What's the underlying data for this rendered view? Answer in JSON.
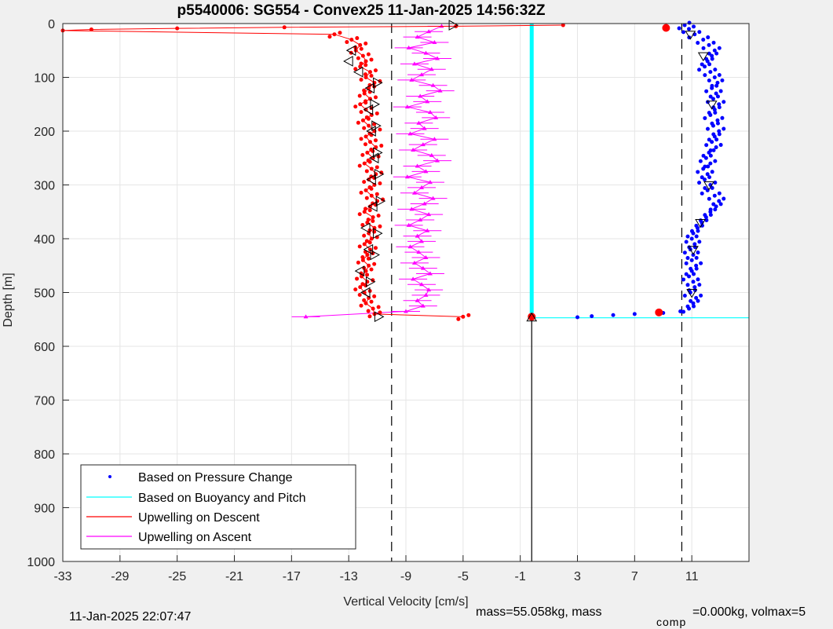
{
  "chart_data": {
    "type": "line",
    "title": "p5540006: SG554 - Convex25 11-Jan-2025 14:56:32Z",
    "xlabel": "Vertical Velocity [cm/s]",
    "ylabel": "Depth [m]",
    "xlim": [
      -33,
      15
    ],
    "ylim": [
      0,
      1000
    ],
    "y_reversed": true,
    "grid": true,
    "x_ticks": [
      -33,
      -29,
      -25,
      -21,
      -17,
      -13,
      -9,
      -5,
      -1,
      3,
      7,
      11
    ],
    "x_tick_labels": [
      "-33",
      "-29",
      "-25",
      "-21",
      "-17",
      "-13",
      "-9",
      "-5",
      "-1",
      "3",
      "7",
      "11"
    ],
    "y_ticks": [
      0,
      100,
      200,
      300,
      400,
      500,
      600,
      700,
      800,
      900,
      1000
    ],
    "y_tick_labels": [
      "0",
      "100",
      "200",
      "300",
      "400",
      "500",
      "600",
      "700",
      "800",
      "900",
      "1000"
    ],
    "legend_position": "bottom-left",
    "legend": [
      {
        "label": "Based on Pressure Change",
        "color": "#0000ff",
        "marker": "dot"
      },
      {
        "label": "Based on Buoyancy and Pitch",
        "color": "#00ffff",
        "marker": "line"
      },
      {
        "label": "Upwelling on Descent",
        "color": "#ff0000",
        "marker": "line"
      },
      {
        "label": "Upwelling on Ascent",
        "color": "#ff00ff",
        "marker": "line"
      }
    ],
    "reference_lines": {
      "dashed_x": [
        -10,
        10.3
      ],
      "solid_x": -0.2,
      "solid_x_depth_range": [
        548,
        1000
      ],
      "cyan_horizontal_depth": 547,
      "cyan_horizontal_x_range": [
        -0.2,
        15
      ]
    },
    "series": {
      "buoyancy_pitch": {
        "x": -0.2,
        "depth_range": [
          0,
          548
        ],
        "color": "#00ffff"
      },
      "pressure_change": {
        "color": "#0000ff",
        "depth": [
          3,
          10,
          20,
          30,
          40,
          50,
          60,
          70,
          80,
          90,
          100,
          110,
          120,
          130,
          140,
          150,
          160,
          170,
          180,
          190,
          200,
          210,
          220,
          230,
          240,
          250,
          260,
          270,
          280,
          290,
          300,
          310,
          320,
          330,
          340,
          350,
          360,
          370,
          380,
          390,
          400,
          410,
          420,
          430,
          440,
          450,
          460,
          470,
          480,
          490,
          500,
          510,
          520,
          530,
          535,
          538,
          540,
          542,
          544,
          546
        ],
        "x": [
          10.5,
          10.8,
          11.2,
          11.8,
          12.2,
          12.6,
          12.4,
          12.1,
          11.9,
          12.3,
          12.6,
          12.8,
          12.4,
          12.7,
          12.5,
          12.9,
          12.6,
          12.3,
          12.8,
          12.5,
          12.9,
          12.6,
          12.4,
          12.7,
          12.2,
          12.0,
          12.3,
          11.8,
          12.1,
          11.9,
          12.3,
          12.1,
          12.6,
          12.9,
          12.7,
          12.3,
          12.0,
          11.7,
          11.4,
          11.1,
          11.0,
          11.2,
          10.9,
          11.1,
          11.0,
          11.3,
          11.0,
          10.8,
          11.1,
          11.2,
          10.9,
          11.3,
          11.1,
          10.8,
          10.2,
          9.0,
          7.0,
          5.5,
          4.0,
          3.0
        ]
      },
      "descent_upwelling": {
        "color": "#ff0000",
        "depth": [
          3,
          5,
          7,
          9,
          11,
          13,
          20,
          30,
          40,
          50,
          60,
          70,
          80,
          90,
          100,
          110,
          120,
          130,
          140,
          150,
          160,
          170,
          180,
          190,
          200,
          210,
          220,
          230,
          240,
          250,
          260,
          270,
          280,
          290,
          300,
          310,
          320,
          330,
          340,
          350,
          360,
          370,
          380,
          390,
          400,
          410,
          420,
          430,
          440,
          450,
          460,
          470,
          480,
          490,
          500,
          510,
          520,
          530,
          540,
          545
        ],
        "x": [
          2.0,
          -5.5,
          -17.5,
          -25.0,
          -31.0,
          -33.0,
          -14.0,
          -12.8,
          -12.2,
          -12.5,
          -12.0,
          -11.8,
          -12.2,
          -11.5,
          -11.8,
          -11.2,
          -11.6,
          -11.9,
          -11.5,
          -12.2,
          -11.8,
          -11.4,
          -12.0,
          -11.6,
          -11.2,
          -11.8,
          -11.5,
          -11.1,
          -11.7,
          -11.3,
          -11.9,
          -11.4,
          -11.1,
          -11.6,
          -11.2,
          -11.8,
          -11.4,
          -11.0,
          -11.5,
          -11.9,
          -11.3,
          -11.7,
          -11.2,
          -11.6,
          -11.4,
          -11.9,
          -11.5,
          -11.7,
          -12.0,
          -11.6,
          -11.8,
          -12.1,
          -11.7,
          -12.2,
          -11.9,
          -11.6,
          -11.8,
          -11.3,
          -11.2,
          -5.0
        ],
        "descent_markers": {
          "depth": [
            50,
            70,
            90,
            120,
            160,
            200,
            250,
            290,
            340,
            380,
            420,
            460,
            500
          ],
          "x": [
            -12.8,
            -13.0,
            -12.3,
            -11.5,
            -11.6,
            -11.4,
            -11.2,
            -11.4,
            -11.3,
            -11.8,
            -11.6,
            -12.2,
            -11.8
          ]
        },
        "ascent_markers": {
          "depth": [
            110,
            150,
            190,
            240,
            280,
            330,
            390,
            430,
            480,
            545
          ],
          "x": [
            -11.0,
            -11.2,
            -11.1,
            -11.0,
            -10.9,
            -10.8,
            -11.0,
            -11.2,
            -11.5,
            -10.9
          ]
        }
      },
      "ascent_upwelling": {
        "color": "#ff00ff",
        "depth": [
          5,
          15,
          25,
          35,
          45,
          55,
          65,
          75,
          85,
          95,
          105,
          115,
          125,
          135,
          145,
          155,
          165,
          175,
          185,
          195,
          205,
          215,
          225,
          235,
          245,
          255,
          265,
          275,
          285,
          295,
          305,
          315,
          325,
          335,
          345,
          355,
          365,
          375,
          385,
          395,
          405,
          415,
          425,
          435,
          445,
          455,
          465,
          475,
          485,
          495,
          505,
          515,
          525,
          535,
          545
        ],
        "x": [
          -6.5,
          -7.4,
          -8.2,
          -7.0,
          -8.8,
          -7.6,
          -6.8,
          -8.4,
          -7.2,
          -7.9,
          -8.6,
          -7.1,
          -6.6,
          -8.0,
          -7.5,
          -8.9,
          -7.3,
          -6.9,
          -8.1,
          -7.7,
          -8.7,
          -7.0,
          -7.8,
          -8.5,
          -7.2,
          -6.8,
          -8.2,
          -7.6,
          -8.9,
          -7.3,
          -7.9,
          -8.4,
          -7.1,
          -7.7,
          -8.6,
          -7.4,
          -8.0,
          -8.8,
          -7.5,
          -8.2,
          -7.9,
          -8.7,
          -8.1,
          -7.6,
          -8.4,
          -7.8,
          -7.3,
          -8.5,
          -7.9,
          -7.4,
          -7.6,
          -8.2,
          -7.8,
          -9.0,
          -16.0
        ]
      },
      "summary_dots": [
        {
          "x": 8.7,
          "depth": 537,
          "color": "#ff0000"
        },
        {
          "x": 9.2,
          "depth": 8,
          "color": "#ff0000"
        },
        {
          "x": -0.2,
          "depth": 545,
          "color": "#ff0000"
        }
      ]
    }
  },
  "footer": {
    "timestamp": "11-Jan-2025 22:07:47",
    "mass_text": "mass=55.058kg, mass",
    "mass_subscript": "comp",
    "mass_text_2": "=0.000kg, volmax=5"
  }
}
